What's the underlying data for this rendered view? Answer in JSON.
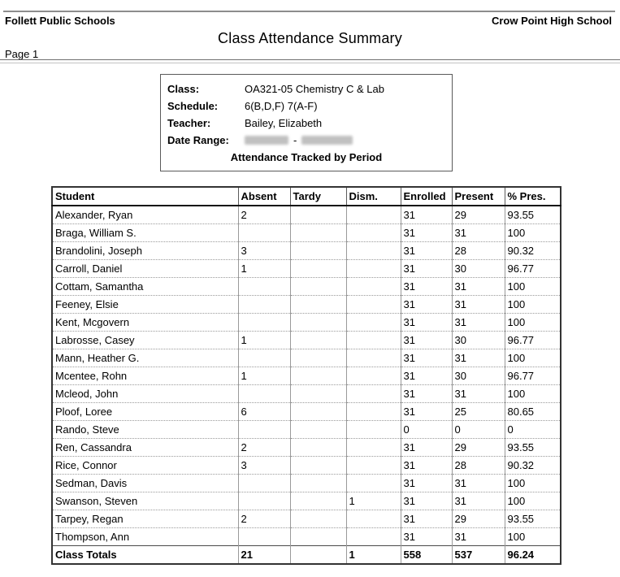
{
  "page": {
    "district": "Follett Public Schools",
    "school": "Crow Point High School",
    "title": "Class Attendance Summary",
    "page_label": "Page 1"
  },
  "info_box": {
    "fields": [
      {
        "label": "Class:",
        "value": "OA321-05 Chemistry C & Lab"
      },
      {
        "label": "Schedule:",
        "value": "6(B,D,F) 7(A-F)"
      },
      {
        "label": "Teacher:",
        "value": "Bailey, Elizabeth"
      },
      {
        "label": "Date Range:",
        "value": "",
        "redacted": true,
        "separator": "-"
      }
    ],
    "footer": "Attendance Tracked by Period"
  },
  "table": {
    "columns": [
      "Student",
      "Absent",
      "Tardy",
      "Dism.",
      "Enrolled",
      "Present",
      "% Pres."
    ],
    "column_keys": [
      "student",
      "absent",
      "tardy",
      "dism",
      "enrolled",
      "present",
      "pct"
    ],
    "rows": [
      [
        "Alexander, Ryan",
        "2",
        "",
        "",
        "31",
        "29",
        "93.55"
      ],
      [
        "Braga, William S.",
        "",
        "",
        "",
        "31",
        "31",
        "100"
      ],
      [
        "Brandolini, Joseph",
        "3",
        "",
        "",
        "31",
        "28",
        "90.32"
      ],
      [
        "Carroll, Daniel",
        "1",
        "",
        "",
        "31",
        "30",
        "96.77"
      ],
      [
        "Cottam, Samantha",
        "",
        "",
        "",
        "31",
        "31",
        "100"
      ],
      [
        "Feeney, Elsie",
        "",
        "",
        "",
        "31",
        "31",
        "100"
      ],
      [
        "Kent, Mcgovern",
        "",
        "",
        "",
        "31",
        "31",
        "100"
      ],
      [
        "Labrosse, Casey",
        "1",
        "",
        "",
        "31",
        "30",
        "96.77"
      ],
      [
        "Mann, Heather G.",
        "",
        "",
        "",
        "31",
        "31",
        "100"
      ],
      [
        "Mcentee, Rohn",
        "1",
        "",
        "",
        "31",
        "30",
        "96.77"
      ],
      [
        "Mcleod, John",
        "",
        "",
        "",
        "31",
        "31",
        "100"
      ],
      [
        "Ploof, Loree",
        "6",
        "",
        "",
        "31",
        "25",
        "80.65"
      ],
      [
        "Rando, Steve",
        "",
        "",
        "",
        "0",
        "0",
        "0"
      ],
      [
        "Ren, Cassandra",
        "2",
        "",
        "",
        "31",
        "29",
        "93.55"
      ],
      [
        "Rice, Connor",
        "3",
        "",
        "",
        "31",
        "28",
        "90.32"
      ],
      [
        "Sedman, Davis",
        "",
        "",
        "",
        "31",
        "31",
        "100"
      ],
      [
        "Swanson, Steven",
        "",
        "",
        "1",
        "31",
        "31",
        "100"
      ],
      [
        "Tarpey, Regan",
        "2",
        "",
        "",
        "31",
        "29",
        "93.55"
      ],
      [
        "Thompson, Ann",
        "",
        "",
        "",
        "31",
        "31",
        "100"
      ]
    ],
    "totals_row": [
      "Class Totals",
      "21",
      "",
      "1",
      "558",
      "537",
      "96.24"
    ]
  },
  "colors": {
    "text": "#000000",
    "rule": "#8d8d8d",
    "table_border": "#333333",
    "grid_line": "#9a9a9a",
    "redacted_fill": "#c0c0c0"
  }
}
